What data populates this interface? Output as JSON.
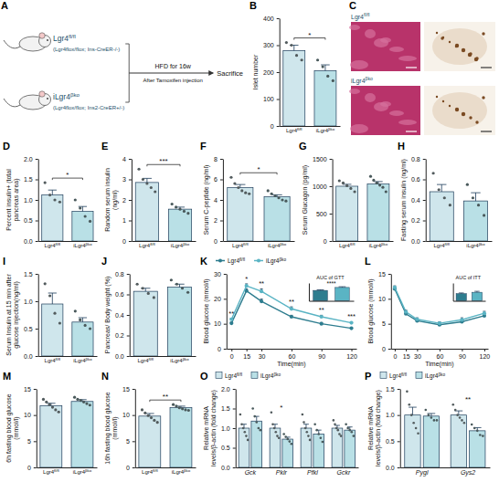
{
  "schematic": {
    "panel": "A",
    "groups": [
      {
        "genotype": "Lgr4fl/fl",
        "genotype_detail": "(Lgr4flox/flox; Ins-CreER-/-)"
      },
      {
        "genotype": "iLgr4βko",
        "genotype_detail": "(Lgr4flox/flox; Ins2-CreER+/-)"
      }
    ],
    "treatment": "HFD for 16w",
    "treatment_detail": "After Tamoxifen injection",
    "endpoint": "Sacrifice"
  },
  "histology": {
    "panel": "C",
    "rows": [
      "Lgr4fl/fl",
      "iLgr4βko"
    ]
  },
  "chart_data": [
    {
      "panel": "B",
      "type": "bar",
      "ylabel": "Islet number",
      "categories": [
        "Lgr4fl/fl",
        "iLgr4βko"
      ],
      "values": [
        280,
        205
      ],
      "errors": [
        20,
        22
      ],
      "points": [
        [
          310,
          300,
          262,
          245
        ],
        [
          245,
          220,
          185,
          168
        ]
      ],
      "colors": [
        "#cfe6ec",
        "#b9e0e6"
      ],
      "ylim": [
        0,
        400
      ],
      "yticks": [
        0,
        100,
        200,
        300,
        400
      ],
      "significance": "*"
    },
    {
      "panel": "D",
      "type": "bar",
      "ylabel": "Percent insulin+ (total pancreas area)",
      "categories": [
        "Lgr4fl/fl",
        "iLgr4βko"
      ],
      "values": [
        1.12,
        0.72
      ],
      "errors": [
        0.12,
        0.12
      ],
      "points": [
        [
          1.42,
          1.12,
          1.0,
          0.95
        ],
        [
          1.0,
          0.8,
          0.6,
          0.48
        ]
      ],
      "colors": [
        "#cfe6ec",
        "#b9e0e6"
      ],
      "ylim": [
        0,
        2
      ],
      "yticks": [
        {
          "value": 0,
          "label": "0.0"
        },
        0.5,
        {
          "value": 1,
          "label": "1.0"
        },
        1.5,
        {
          "value": 2,
          "label": "2.0"
        }
      ],
      "significance": "*"
    },
    {
      "panel": "E",
      "type": "bar",
      "ylabel": "Random serum insulin (ng/ml)",
      "categories": [
        "Lgr4fl/fl",
        "iLgr4βko"
      ],
      "values": [
        2.85,
        1.55
      ],
      "errors": [
        0.2,
        0.1
      ],
      "points": [
        [
          3.5,
          3.0,
          2.8,
          2.6,
          2.4
        ],
        [
          1.8,
          1.65,
          1.55,
          1.45,
          1.35
        ]
      ],
      "colors": [
        "#cfe6ec",
        "#b9e0e6"
      ],
      "ylim": [
        0,
        4
      ],
      "yticks": [
        0,
        1,
        2,
        3,
        4
      ],
      "significance": "***"
    },
    {
      "panel": "F",
      "type": "bar",
      "ylabel": "Serum C-peptide (ng/ml)",
      "categories": [
        "Lgr4fl/fl",
        "iLgr4βko"
      ],
      "values": [
        5.2,
        4.3
      ],
      "errors": [
        0.3,
        0.2
      ],
      "points": [
        [
          6.2,
          5.6,
          5.2,
          4.9,
          4.7,
          4.6
        ],
        [
          4.9,
          4.6,
          4.4,
          4.2,
          4.0,
          3.9
        ]
      ],
      "colors": [
        "#cfe6ec",
        "#b9e0e6"
      ],
      "ylim": [
        0,
        8
      ],
      "yticks": [
        0,
        2,
        4,
        6,
        8
      ],
      "significance": "*"
    },
    {
      "panel": "G",
      "type": "bar",
      "ylabel": "Serum Glucagon (pg/ml)",
      "categories": [
        "Lgr4fl/fl",
        "iLgr4βko"
      ],
      "values": [
        1000,
        1040
      ],
      "errors": [
        35,
        45
      ],
      "points": [
        [
          1100,
          1060,
          1010,
          960,
          900
        ],
        [
          1180,
          1110,
          1060,
          1020,
          980,
          900
        ]
      ],
      "colors": [
        "#cfe6ec",
        "#b9e0e6"
      ],
      "ylim": [
        0,
        1500
      ],
      "yticks": [
        0,
        500,
        1000,
        1500
      ]
    },
    {
      "panel": "H",
      "type": "bar",
      "ylabel": "Fasting serum insulin (ng/ml)",
      "categories": [
        "Lgr4fl/fl",
        "iLgr4βko"
      ],
      "values": [
        0.48,
        0.39
      ],
      "errors": [
        0.07,
        0.08
      ],
      "points": [
        [
          0.66,
          0.5,
          0.42,
          0.35
        ],
        [
          0.55,
          0.42,
          0.35,
          0.25
        ]
      ],
      "colors": [
        "#cfe6ec",
        "#b9e0e6"
      ],
      "ylim": [
        0,
        0.8
      ],
      "yticks": [
        {
          "value": 0,
          "label": "0.0"
        },
        0.2,
        0.4,
        0.6,
        0.8
      ]
    },
    {
      "panel": "I",
      "type": "bar",
      "ylabel": "Serum Insulin at 15 min after glucose injection(ng/ml)",
      "categories": [
        "Lgr4fl/fl",
        "iLgr4βko"
      ],
      "values": [
        0.95,
        0.62
      ],
      "errors": [
        0.2,
        0.08
      ],
      "points": [
        [
          1.32,
          1.1,
          0.78,
          0.6
        ],
        [
          0.82,
          0.66,
          0.56,
          0.5
        ]
      ],
      "colors": [
        "#cfe6ec",
        "#b9e0e6"
      ],
      "ylim": [
        0,
        1.5
      ],
      "yticks": [
        {
          "value": 0,
          "label": "0.0"
        },
        0.5,
        {
          "value": 1,
          "label": "1.0"
        },
        1.5
      ]
    },
    {
      "panel": "J",
      "type": "bar",
      "ylabel": "Pancreas/ Body weight (%)",
      "categories": [
        "Lgr4fl/fl",
        "iLgr4βko"
      ],
      "values": [
        0.63,
        0.67
      ],
      "errors": [
        0.03,
        0.03
      ],
      "points": [
        [
          0.7,
          0.66,
          0.61,
          0.57
        ],
        [
          0.74,
          0.7,
          0.66,
          0.62
        ]
      ],
      "colors": [
        "#cfe6ec",
        "#b9e0e6"
      ],
      "ylim": [
        0,
        0.8
      ],
      "yticks": [
        {
          "value": 0,
          "label": "0.0"
        },
        0.2,
        0.4,
        0.6,
        0.8
      ]
    },
    {
      "panel": "K",
      "type": "line",
      "ylabel": "Blood glucose (mmol/l)",
      "xlabel": "Time(min)",
      "x": [
        0,
        15,
        30,
        60,
        90,
        120
      ],
      "xlim": [
        -5,
        125
      ],
      "xticks": [
        0,
        15,
        30,
        60,
        90,
        120
      ],
      "ylim": [
        0,
        30
      ],
      "yticks": [
        0,
        10,
        20,
        30
      ],
      "legend": "top",
      "series": [
        {
          "name": "Lgr4fl/fl",
          "color": "#2e7d8f",
          "marker": "circle",
          "values": [
            10.2,
            23.2,
            19,
            12.8,
            10,
            8.2
          ],
          "errors": [
            0.4,
            0.8,
            0.9,
            0.6,
            0.5,
            0.4
          ]
        },
        {
          "name": "iLgr4βko",
          "color": "#5ab4c4",
          "marker": "circle",
          "values": [
            11.8,
            25.2,
            23,
            16,
            12.8,
            10.4
          ],
          "errors": [
            0.4,
            0.8,
            1,
            0.8,
            0.6,
            0.4
          ]
        }
      ],
      "significance": [
        "**",
        "*",
        "**",
        "**",
        "**",
        "***"
      ],
      "inset": {
        "title": "AUC of GTT",
        "values": [
          1750,
          2250
        ],
        "errors": [
          100,
          120
        ],
        "colors": [
          "#2e7d8f",
          "#5ab4c4"
        ],
        "ylim": [
          0,
          3000
        ],
        "tick_labels": false,
        "significance": "****"
      }
    },
    {
      "panel": "L",
      "type": "line",
      "ylabel": "Blood glucose (mmol/l)",
      "xlabel": "Time(min)",
      "x": [
        0,
        15,
        30,
        60,
        90,
        120
      ],
      "xlim": [
        -5,
        125
      ],
      "xticks": [
        0,
        15,
        30,
        60,
        90,
        120
      ],
      "ylim": [
        0,
        15
      ],
      "yticks": [
        0,
        5,
        10,
        15
      ],
      "series": [
        {
          "name": "Lgr4fl/fl",
          "color": "#2e7d8f",
          "marker": "circle",
          "values": [
            12,
            7,
            5.6,
            4.8,
            5.4,
            6.6
          ],
          "errors": [
            0.3,
            0.3,
            0.3,
            0.3,
            0.3,
            0.4
          ]
        },
        {
          "name": "iLgr4βko",
          "color": "#5ab4c4",
          "marker": "circle",
          "values": [
            12.3,
            7.4,
            5.9,
            5.1,
            5.8,
            7.1
          ],
          "errors": [
            0.3,
            0.3,
            0.3,
            0.3,
            0.4,
            0.4
          ]
        }
      ],
      "inset": {
        "title": "AUC of ITT",
        "values": [
          600,
          720
        ],
        "errors": [
          60,
          80
        ],
        "colors": [
          "#2e7d8f",
          "#5ab4c4"
        ],
        "ylim": [
          0,
          1500
        ],
        "tick_labels": false
      }
    },
    {
      "panel": "M",
      "type": "bar",
      "ylabel": "6h fasting blood glucose (mmol/l)",
      "categories": [
        "Lgr4fl/fl",
        "iLgr4βko"
      ],
      "values": [
        11.8,
        12.6
      ],
      "errors": [
        0.45,
        0.35
      ],
      "points": [
        [
          13,
          12.5,
          12,
          11.5,
          11,
          10.6
        ],
        [
          13.4,
          13,
          12.8,
          12.5,
          12.2,
          11.9
        ]
      ],
      "colors": [
        "#cfe6ec",
        "#b9e0e6"
      ],
      "ylim": [
        0,
        15
      ],
      "yticks": [
        0,
        5,
        10,
        15
      ]
    },
    {
      "panel": "N",
      "type": "bar",
      "ylabel": "16h fasting blood glucose (mmol/l)",
      "categories": [
        "Lgr4fl/fl",
        "iLgr4βko"
      ],
      "values": [
        9.8,
        11.4
      ],
      "errors": [
        0.5,
        0.3
      ],
      "points": [
        [
          11,
          10.4,
          9.9,
          9.5,
          9,
          8.6
        ],
        [
          12,
          11.7,
          11.4,
          11.2,
          11,
          10.9
        ]
      ],
      "colors": [
        "#cfe6ec",
        "#b9e0e6"
      ],
      "ylim": [
        0,
        15
      ],
      "yticks": [
        0,
        5,
        10,
        15
      ],
      "significance": "**"
    },
    {
      "panel": "O",
      "type": "grouped_bar",
      "ylabel": "Relative mRNA levels/β-actin (fold change)",
      "categories": [
        "Gck",
        "Pklr",
        "Pfkl",
        "Gckr"
      ],
      "ylim": [
        0,
        2
      ],
      "yticks": [
        {
          "value": 0,
          "label": "0.0"
        },
        0.5,
        {
          "value": 1,
          "label": "1.0"
        },
        1.5,
        {
          "value": 2,
          "label": "2.0"
        }
      ],
      "legend": "top",
      "series": [
        {
          "name": "Lgr4fl/fl",
          "color": "#cfe6ec",
          "values": [
            1,
            1,
            1,
            1
          ],
          "errors": [
            0.1,
            0.1,
            0.1,
            0.07
          ],
          "points": [
            [
              1.35,
              1.1,
              1.0,
              0.9,
              0.8,
              0.7
            ],
            [
              1.4,
              1.1,
              1.0,
              0.9,
              0.8,
              0.75
            ],
            [
              1.35,
              1.15,
              1.0,
              0.9,
              0.8,
              0.7
            ],
            [
              1.2,
              1.1,
              1.0,
              0.95,
              0.85,
              0.8
            ]
          ]
        },
        {
          "name": "iLgr4βko",
          "color": "#b9e0e6",
          "values": [
            1.18,
            0.72,
            0.85,
            0.95
          ],
          "errors": [
            0.12,
            0.05,
            0.1,
            0.08
          ],
          "points": [
            [
              1.5,
              1.3,
              1.15,
              1.0,
              0.95
            ],
            [
              0.85,
              0.78,
              0.72,
              0.66,
              0.6
            ],
            [
              1.1,
              0.95,
              0.85,
              0.75,
              0.65
            ],
            [
              1.1,
              1.0,
              0.95,
              0.9,
              0.8
            ]
          ]
        }
      ],
      "significance": [
        null,
        "*",
        null,
        null
      ]
    },
    {
      "panel": "P",
      "type": "grouped_bar",
      "ylabel": "Relative mRNA levels/β-actin (fold change)",
      "categories": [
        "Pygl",
        "Gys2"
      ],
      "ylim": [
        0,
        1.5
      ],
      "yticks": [
        {
          "value": 0,
          "label": "0.0"
        },
        0.5,
        {
          "value": 1,
          "label": "1.0"
        },
        1.5
      ],
      "legend": "top",
      "series": [
        {
          "name": "Lgr4fl/fl",
          "color": "#cfe6ec",
          "values": [
            1,
            1
          ],
          "errors": [
            0.15,
            0.08
          ],
          "points": [
            [
              1.45,
              1.2,
              1.0,
              0.85,
              0.75,
              0.65
            ],
            [
              1.2,
              1.1,
              1.0,
              0.95,
              0.9,
              0.85
            ]
          ]
        },
        {
          "name": "iLgr4βko",
          "color": "#b9e0e6",
          "values": [
            0.98,
            0.7
          ],
          "errors": [
            0.05,
            0.06
          ],
          "points": [
            [
              1.1,
              1.0,
              0.95,
              0.9,
              0.9
            ],
            [
              0.82,
              0.75,
              0.7,
              0.62,
              0.6
            ]
          ]
        }
      ],
      "significance": [
        null,
        "**"
      ]
    }
  ]
}
